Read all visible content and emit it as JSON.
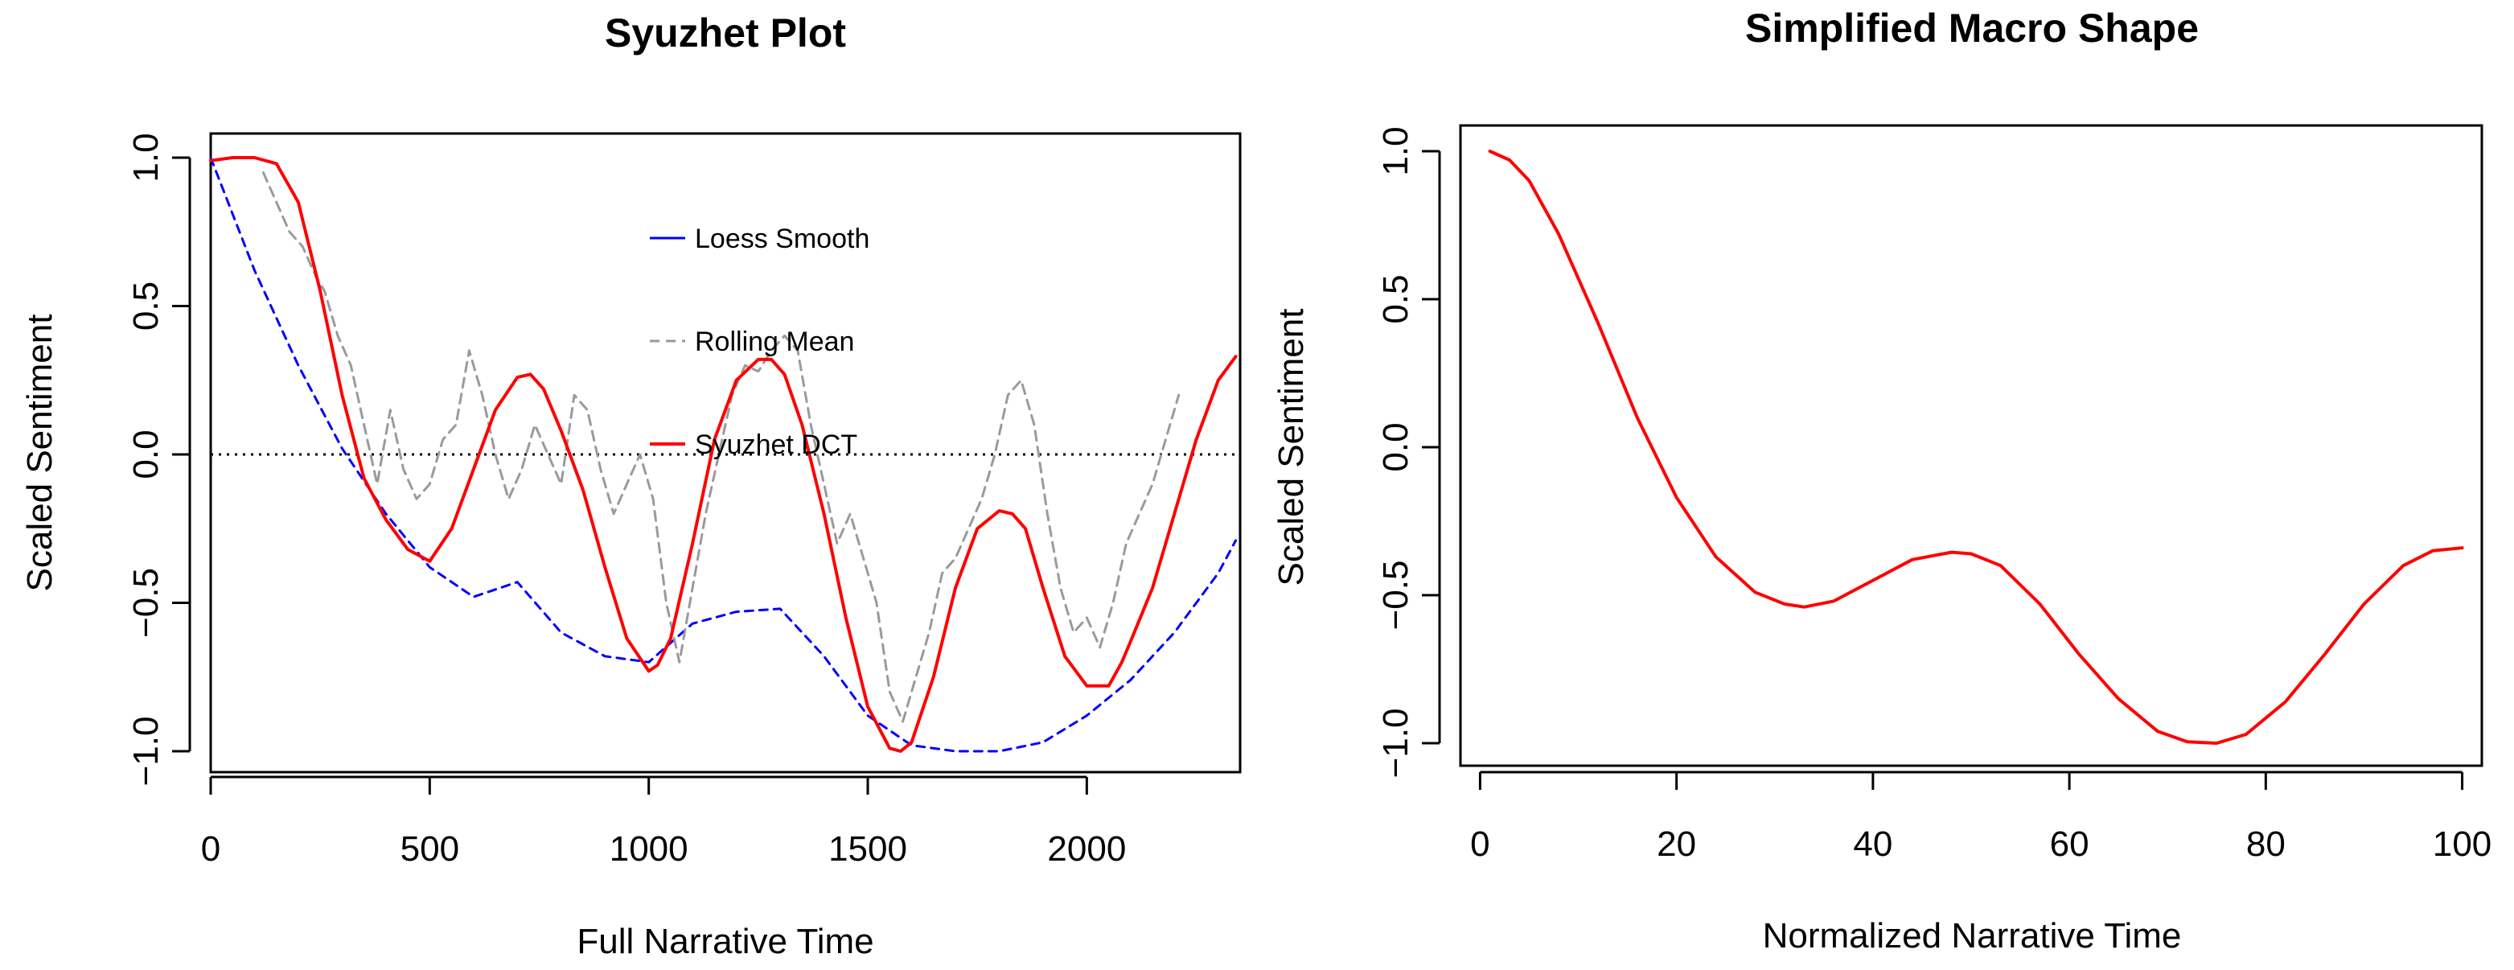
{
  "chart_data": [
    {
      "type": "line",
      "title": "Syuzhet Plot",
      "xlabel": "Full Narrative Time",
      "ylabel": "Scaled Sentiment",
      "xlim": [
        0,
        2350
      ],
      "ylim": [
        -1.05,
        1.05
      ],
      "xticks": [
        0,
        500,
        1000,
        1500,
        2000
      ],
      "yticks": [
        -1.0,
        -0.5,
        0.0,
        0.5,
        1.0
      ],
      "xtick_labels": [
        "0",
        "500",
        "1000",
        "1500",
        "2000"
      ],
      "ytick_labels": [
        "−1.0",
        "−0.5",
        "0.0",
        "0.5",
        "1.0"
      ],
      "reference_line": {
        "y": 0,
        "style": "dotted",
        "color": "#000000"
      },
      "legend": {
        "position": "top-center",
        "entries": [
          "Loess Smooth",
          "Rolling Mean",
          "Syuzhet DCT"
        ]
      },
      "series": [
        {
          "name": "Loess Smooth",
          "color": "#0000ff",
          "style": "dashed",
          "x": [
            0,
            100,
            200,
            300,
            400,
            500,
            600,
            700,
            800,
            900,
            1000,
            1100,
            1200,
            1300,
            1400,
            1500,
            1600,
            1700,
            1800,
            1900,
            2000,
            2100,
            2200,
            2300,
            2340
          ],
          "values": [
            1.0,
            0.62,
            0.3,
            0.02,
            -0.2,
            -0.38,
            -0.48,
            -0.43,
            -0.6,
            -0.68,
            -0.7,
            -0.57,
            -0.53,
            -0.52,
            -0.68,
            -0.88,
            -0.98,
            -1.0,
            -1.0,
            -0.97,
            -0.88,
            -0.76,
            -0.6,
            -0.4,
            -0.29
          ]
        },
        {
          "name": "Rolling Mean",
          "color": "#9a9a9a",
          "style": "dashed",
          "x": [
            120,
            150,
            180,
            210,
            240,
            260,
            290,
            320,
            350,
            380,
            410,
            440,
            470,
            500,
            530,
            560,
            590,
            620,
            650,
            680,
            710,
            740,
            770,
            800,
            830,
            860,
            890,
            920,
            950,
            980,
            1010,
            1040,
            1070,
            1100,
            1130,
            1160,
            1190,
            1220,
            1250,
            1280,
            1310,
            1340,
            1370,
            1400,
            1430,
            1460,
            1490,
            1520,
            1550,
            1580,
            1610,
            1640,
            1670,
            1700,
            1730,
            1760,
            1790,
            1820,
            1850,
            1880,
            1910,
            1940,
            1970,
            2000,
            2030,
            2060,
            2090,
            2120,
            2150,
            2180,
            2210
          ],
          "values": [
            0.95,
            0.85,
            0.75,
            0.7,
            0.6,
            0.55,
            0.4,
            0.3,
            0.1,
            -0.1,
            0.15,
            -0.05,
            -0.15,
            -0.1,
            0.05,
            0.1,
            0.35,
            0.2,
            0.0,
            -0.15,
            -0.05,
            0.1,
            0.0,
            -0.1,
            0.2,
            0.15,
            -0.05,
            -0.2,
            -0.1,
            0.0,
            -0.15,
            -0.5,
            -0.7,
            -0.45,
            -0.2,
            0.0,
            0.2,
            0.3,
            0.28,
            0.35,
            0.4,
            0.35,
            0.1,
            -0.1,
            -0.3,
            -0.2,
            -0.35,
            -0.5,
            -0.8,
            -0.9,
            -0.75,
            -0.6,
            -0.4,
            -0.35,
            -0.25,
            -0.15,
            0.0,
            0.2,
            0.25,
            0.1,
            -0.2,
            -0.45,
            -0.6,
            -0.55,
            -0.65,
            -0.5,
            -0.3,
            -0.2,
            -0.1,
            0.05,
            0.2
          ]
        },
        {
          "name": "Syuzhet DCT",
          "color": "#ff0000",
          "style": "solid",
          "x": [
            0,
            50,
            100,
            150,
            200,
            250,
            300,
            350,
            400,
            450,
            500,
            550,
            600,
            650,
            700,
            730,
            760,
            800,
            850,
            900,
            950,
            1000,
            1020,
            1050,
            1100,
            1150,
            1200,
            1250,
            1280,
            1310,
            1350,
            1400,
            1450,
            1500,
            1550,
            1575,
            1600,
            1650,
            1700,
            1750,
            1800,
            1830,
            1860,
            1900,
            1950,
            2000,
            2050,
            2080,
            2100,
            2150,
            2200,
            2250,
            2300,
            2340
          ],
          "values": [
            0.99,
            1.0,
            1.0,
            0.98,
            0.85,
            0.55,
            0.2,
            -0.08,
            -0.22,
            -0.32,
            -0.36,
            -0.25,
            -0.05,
            0.15,
            0.26,
            0.27,
            0.22,
            0.08,
            -0.12,
            -0.38,
            -0.62,
            -0.73,
            -0.71,
            -0.62,
            -0.3,
            0.05,
            0.25,
            0.32,
            0.32,
            0.27,
            0.1,
            -0.2,
            -0.55,
            -0.85,
            -0.99,
            -1.0,
            -0.97,
            -0.75,
            -0.45,
            -0.25,
            -0.19,
            -0.2,
            -0.25,
            -0.45,
            -0.68,
            -0.78,
            -0.78,
            -0.7,
            -0.63,
            -0.45,
            -0.2,
            0.05,
            0.25,
            0.33
          ]
        }
      ]
    },
    {
      "type": "line",
      "title": "Simplified Macro Shape",
      "xlabel": "Normalized Narrative Time",
      "ylabel": "Scaled Sentiment",
      "xlim": [
        -2,
        102
      ],
      "ylim": [
        -1.05,
        1.05
      ],
      "xticks": [
        0,
        20,
        40,
        60,
        80,
        100
      ],
      "yticks": [
        -1.0,
        -0.5,
        0.0,
        0.5,
        1.0
      ],
      "xtick_labels": [
        "0",
        "20",
        "40",
        "60",
        "80",
        "100"
      ],
      "ytick_labels": [
        "−1.0",
        "−0.5",
        "0.0",
        "0.5",
        "1.0"
      ],
      "series": [
        {
          "name": "Simplified Macro Shape",
          "color": "#ff0000",
          "style": "solid",
          "x": [
            1,
            3,
            5,
            8,
            12,
            16,
            20,
            24,
            28,
            31,
            33,
            36,
            40,
            44,
            48,
            50,
            53,
            57,
            61,
            65,
            69,
            72,
            75,
            78,
            82,
            86,
            90,
            94,
            97,
            100
          ],
          "values": [
            1.0,
            0.97,
            0.9,
            0.72,
            0.42,
            0.1,
            -0.17,
            -0.37,
            -0.49,
            -0.53,
            -0.54,
            -0.52,
            -0.45,
            -0.38,
            -0.355,
            -0.36,
            -0.4,
            -0.53,
            -0.7,
            -0.85,
            -0.96,
            -0.995,
            -1.0,
            -0.97,
            -0.86,
            -0.7,
            -0.53,
            -0.4,
            -0.35,
            -0.34
          ]
        }
      ]
    }
  ]
}
